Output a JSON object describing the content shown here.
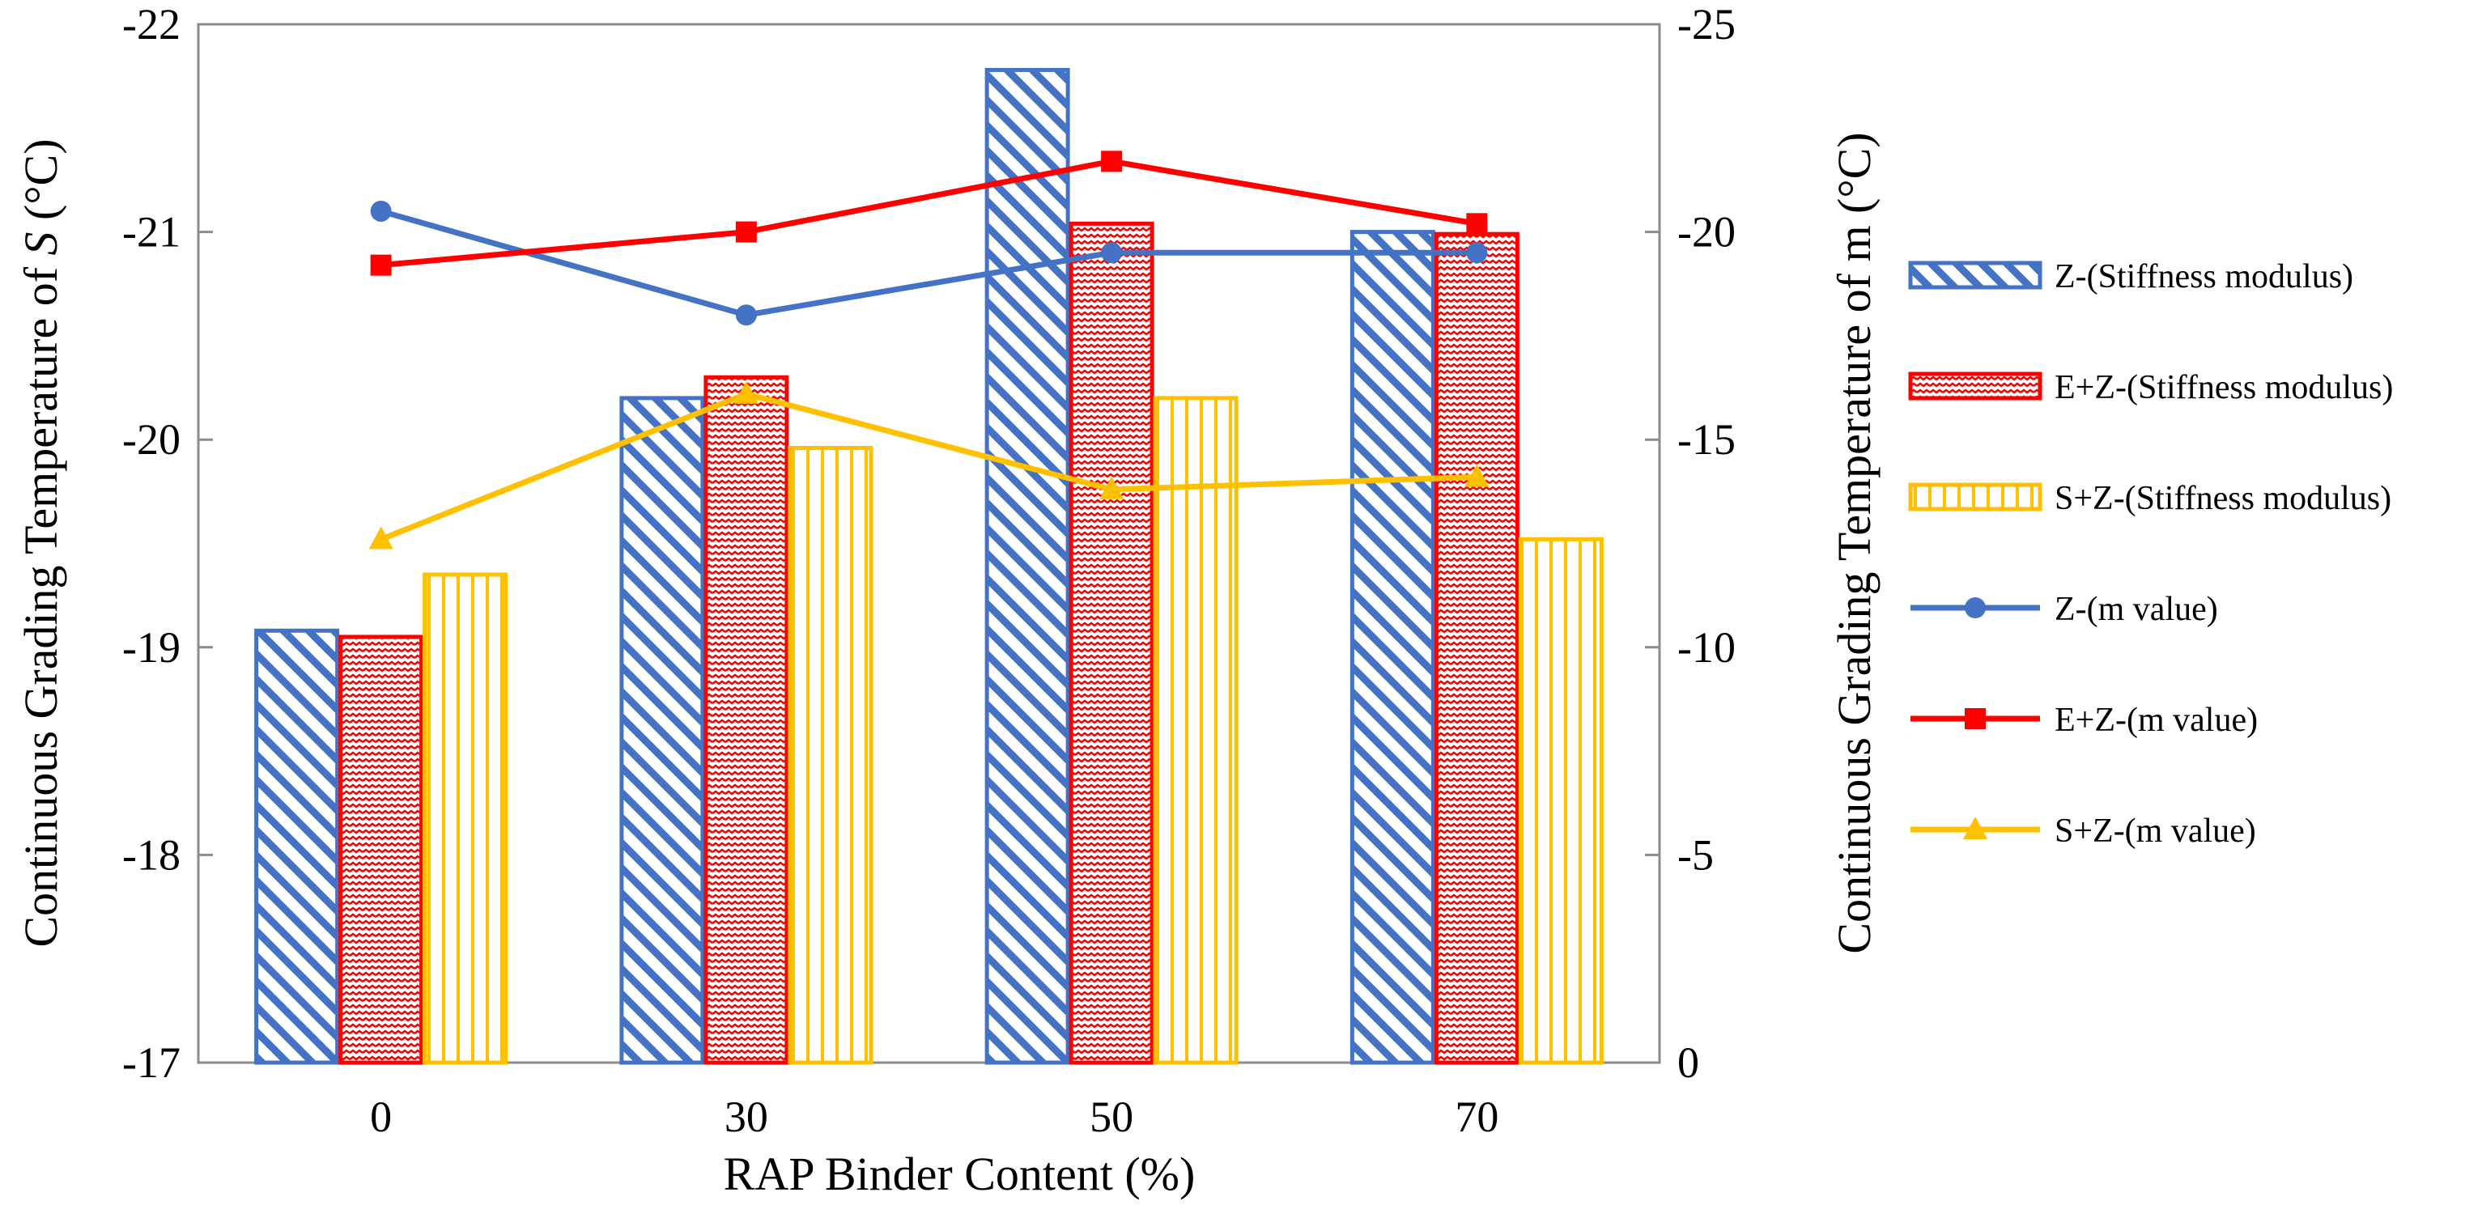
{
  "chart_data": {
    "type": "bar+line",
    "title": "",
    "xlabel": "RAP Binder Content (%)",
    "ylabel_left": "Continuous Grading Temperature of S (°C)",
    "ylabel_left_prefix": "Continuous Grading Temperature of ",
    "ylabel_left_symbol": "S",
    "ylabel_left_suffix": " (°C)",
    "ylabel_right": "Continuous Grading Temperature of m (°C)",
    "categories": [
      "0",
      "30",
      "50",
      "70"
    ],
    "ylim_left": [
      -17,
      -22
    ],
    "ylim_right": [
      0,
      -25
    ],
    "left_ticks": [
      "-17",
      "-18",
      "-19",
      "-20",
      "-21",
      "-22"
    ],
    "right_ticks": [
      "0",
      "-5",
      "-10",
      "-15",
      "-20",
      "-25"
    ],
    "bar_series": [
      {
        "name": "Z-(Stiffness modulus)",
        "color": "#4472C4",
        "pattern": "diagonal",
        "values": [
          -19.08,
          -20.2,
          -21.78,
          -21.0
        ]
      },
      {
        "name": "E+Z-(Stiffness modulus)",
        "color": "#FF0000",
        "pattern": "wave",
        "values": [
          -19.05,
          -20.3,
          -21.04,
          -20.99
        ]
      },
      {
        "name": "S+Z-(Stiffness modulus)",
        "color": "#FFC000",
        "pattern": "vertical",
        "values": [
          -19.35,
          -19.96,
          -20.2,
          -19.52
        ]
      }
    ],
    "line_series": [
      {
        "name": "Z-(m value)",
        "color": "#4472C4",
        "marker": "circle",
        "values": [
          -20.5,
          -18.0,
          -19.5,
          -19.5
        ]
      },
      {
        "name": "E+Z-(m value)",
        "color": "#FF0000",
        "marker": "square",
        "values": [
          -19.2,
          -20.0,
          -21.7,
          -20.2
        ]
      },
      {
        "name": "S+Z-(m value)",
        "color": "#FFC000",
        "marker": "triangle",
        "values": [
          -12.6,
          -16.1,
          -13.8,
          -14.1
        ]
      }
    ],
    "legend_position": "right"
  }
}
